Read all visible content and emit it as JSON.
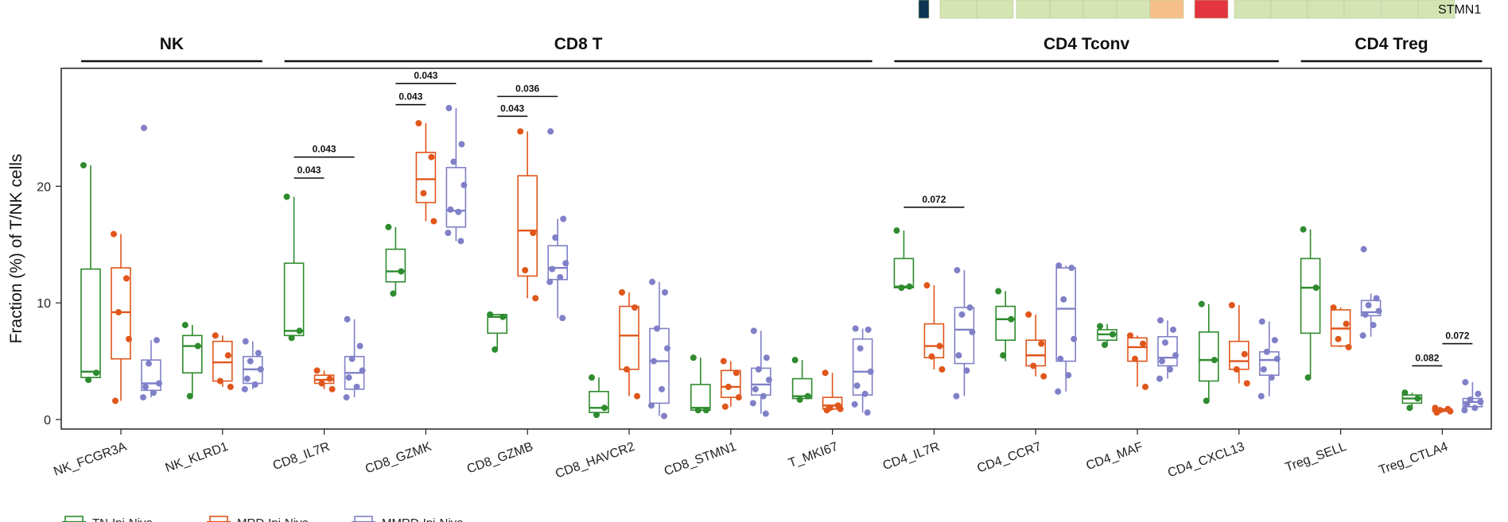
{
  "chart_data": {
    "type": "box",
    "ylabel": "Fraction (%) of T/NK cells",
    "ylim": [
      -1,
      30
    ],
    "yticks": [
      0,
      10,
      20
    ],
    "palette": {
      "TN-Ipi-Nivo": "#2e8b2e",
      "MRD-Ipi-Nivo": "#e0561b",
      "MMRD-Ipi-Nivo": "#8080c8"
    },
    "legend": {
      "position": "bottom-left",
      "entries": [
        {
          "key": "TN-Ipi-Nivo",
          "label": "TN-Ipi-Nivo",
          "color": "#2e8b2e"
        },
        {
          "key": "MRD-Ipi-Nivo",
          "label": "MRD-Ipi-Nivo",
          "color": "#e0561b"
        },
        {
          "key": "MMRD-Ipi-Nivo",
          "label": "MMRD-Ipi-Nivo",
          "color": "#8080c8"
        }
      ]
    },
    "groups": [
      {
        "label": "NK",
        "from": 0,
        "to": 1
      },
      {
        "label": "CD8 T",
        "from": 2,
        "to": 7
      },
      {
        "label": "CD4 Tconv",
        "from": 8,
        "to": 11
      },
      {
        "label": "CD4 Treg",
        "from": 12,
        "to": 13
      }
    ],
    "categories": [
      "NK_FCGR3A",
      "NK_KLRD1",
      "CD8_IL7R",
      "CD8_GZMK",
      "CD8_GZMB",
      "CD8_HAVCR2",
      "CD8_STMN1",
      "T_MKI67",
      "CD4_IL7R",
      "CD4_CCR7",
      "CD4_MAF",
      "CD4_CXCL13",
      "Treg_SELL",
      "Treg_CTLA4"
    ],
    "series": [
      {
        "name": "TN-Ipi-Nivo",
        "boxes": [
          {
            "min": 3.2,
            "q1": 3.6,
            "median": 4.1,
            "q3": 12.9,
            "max": 21.8,
            "points": [
              21.8,
              4.0,
              3.4
            ]
          },
          {
            "min": 2.0,
            "q1": 4.0,
            "median": 6.3,
            "q3": 7.2,
            "max": 8.1,
            "points": [
              8.1,
              6.3,
              2.0
            ]
          },
          {
            "min": 7.0,
            "q1": 7.2,
            "median": 7.6,
            "q3": 13.4,
            "max": 19.1,
            "points": [
              19.1,
              7.6,
              7.0
            ]
          },
          {
            "min": 10.8,
            "q1": 11.8,
            "median": 12.7,
            "q3": 14.6,
            "max": 16.5,
            "points": [
              16.5,
              12.7,
              10.8
            ]
          },
          {
            "min": 6.0,
            "q1": 7.4,
            "median": 8.8,
            "q3": 9.0,
            "max": 9.0,
            "points": [
              9.0,
              8.8,
              6.0
            ]
          },
          {
            "min": 0.4,
            "q1": 0.6,
            "median": 1.0,
            "q3": 2.4,
            "max": 3.6,
            "points": [
              3.6,
              1.0,
              0.4
            ]
          },
          {
            "min": 0.8,
            "q1": 0.8,
            "median": 1.0,
            "q3": 3.0,
            "max": 5.3,
            "points": [
              5.3,
              0.8,
              0.8
            ]
          },
          {
            "min": 1.6,
            "q1": 1.8,
            "median": 2.0,
            "q3": 3.5,
            "max": 5.1,
            "points": [
              5.1,
              2.0,
              1.7
            ]
          },
          {
            "min": 11.2,
            "q1": 11.3,
            "median": 11.4,
            "q3": 13.8,
            "max": 16.2,
            "points": [
              16.2,
              11.4,
              11.3
            ]
          },
          {
            "min": 5.0,
            "q1": 6.8,
            "median": 8.6,
            "q3": 9.7,
            "max": 11.0,
            "points": [
              11.0,
              8.6,
              5.5
            ]
          },
          {
            "min": 6.5,
            "q1": 6.8,
            "median": 7.3,
            "q3": 7.7,
            "max": 8.2,
            "points": [
              8.0,
              7.3,
              6.4
            ]
          },
          {
            "min": 1.6,
            "q1": 3.3,
            "median": 5.1,
            "q3": 7.5,
            "max": 9.9,
            "points": [
              9.9,
              5.1,
              1.6
            ]
          },
          {
            "min": 3.6,
            "q1": 7.4,
            "median": 11.3,
            "q3": 13.8,
            "max": 16.3,
            "points": [
              16.3,
              11.3,
              3.6
            ]
          },
          {
            "min": 0.9,
            "q1": 1.4,
            "median": 1.8,
            "q3": 2.1,
            "max": 2.3,
            "points": [
              2.3,
              1.8,
              1.0
            ]
          }
        ]
      },
      {
        "name": "MRD-Ipi-Nivo",
        "boxes": [
          {
            "min": 1.6,
            "q1": 5.2,
            "median": 9.2,
            "q3": 13.0,
            "max": 15.9,
            "points": [
              15.9,
              12.1,
              9.2,
              6.9,
              1.6
            ]
          },
          {
            "min": 2.8,
            "q1": 3.3,
            "median": 4.9,
            "q3": 6.7,
            "max": 7.2,
            "points": [
              7.2,
              5.5,
              3.3,
              2.8
            ]
          },
          {
            "min": 2.6,
            "q1": 3.1,
            "median": 3.4,
            "q3": 3.8,
            "max": 4.2,
            "points": [
              4.2,
              3.5,
              3.1,
              2.6
            ]
          },
          {
            "min": 17.0,
            "q1": 18.6,
            "median": 20.6,
            "q3": 22.9,
            "max": 25.4,
            "points": [
              25.4,
              22.5,
              19.4,
              17.0
            ]
          },
          {
            "min": 10.4,
            "q1": 12.3,
            "median": 16.2,
            "q3": 20.9,
            "max": 24.7,
            "points": [
              24.7,
              16.0,
              12.8,
              10.4
            ]
          },
          {
            "min": 2.0,
            "q1": 4.3,
            "median": 7.2,
            "q3": 9.7,
            "max": 10.9,
            "points": [
              10.9,
              9.6,
              4.3,
              2.0
            ]
          },
          {
            "min": 1.1,
            "q1": 1.9,
            "median": 2.8,
            "q3": 4.2,
            "max": 5.0,
            "points": [
              5.0,
              4.0,
              2.8,
              1.9,
              1.1
            ]
          },
          {
            "min": 0.8,
            "q1": 0.9,
            "median": 1.2,
            "q3": 1.9,
            "max": 4.0,
            "points": [
              4.0,
              1.2,
              1.0,
              0.9,
              0.8
            ]
          },
          {
            "min": 4.3,
            "q1": 5.3,
            "median": 6.3,
            "q3": 8.2,
            "max": 11.5,
            "points": [
              11.5,
              6.3,
              5.4,
              4.3
            ]
          },
          {
            "min": 3.7,
            "q1": 4.6,
            "median": 5.5,
            "q3": 6.8,
            "max": 9.0,
            "points": [
              9.0,
              6.5,
              4.6,
              3.7
            ]
          },
          {
            "min": 2.8,
            "q1": 5.0,
            "median": 6.2,
            "q3": 7.0,
            "max": 7.2,
            "points": [
              7.2,
              6.5,
              5.2,
              2.8
            ]
          },
          {
            "min": 3.1,
            "q1": 4.3,
            "median": 5.0,
            "q3": 6.7,
            "max": 9.8,
            "points": [
              9.8,
              5.6,
              4.3,
              3.1
            ]
          },
          {
            "min": 6.2,
            "q1": 6.3,
            "median": 7.8,
            "q3": 9.4,
            "max": 9.6,
            "points": [
              9.6,
              8.2,
              6.9,
              6.2
            ]
          },
          {
            "min": 0.6,
            "q1": 0.7,
            "median": 0.8,
            "q3": 0.9,
            "max": 1.0,
            "points": [
              1.0,
              0.9,
              0.8,
              0.7,
              0.6
            ]
          }
        ]
      },
      {
        "name": "MMRD-Ipi-Nivo",
        "boxes": [
          {
            "min": 1.9,
            "q1": 2.5,
            "median": 3.1,
            "q3": 5.1,
            "max": 6.8,
            "points": [
              25.0,
              6.8,
              4.8,
              3.1,
              2.8,
              2.3,
              1.9
            ]
          },
          {
            "min": 2.6,
            "q1": 3.1,
            "median": 4.3,
            "q3": 5.4,
            "max": 6.7,
            "points": [
              6.7,
              5.7,
              5.0,
              4.3,
              3.5,
              3.0,
              2.6
            ]
          },
          {
            "min": 1.9,
            "q1": 2.6,
            "median": 4.0,
            "q3": 5.4,
            "max": 8.6,
            "points": [
              8.6,
              6.3,
              5.2,
              4.2,
              3.6,
              2.8,
              1.9
            ]
          },
          {
            "min": 15.3,
            "q1": 16.5,
            "median": 17.9,
            "q3": 21.6,
            "max": 26.7,
            "points": [
              26.7,
              23.6,
              22.1,
              20.1,
              18.0,
              17.8,
              16.0,
              15.3
            ]
          },
          {
            "min": 8.7,
            "q1": 12.0,
            "median": 13.0,
            "q3": 14.9,
            "max": 17.2,
            "points": [
              24.7,
              17.2,
              15.6,
              13.4,
              12.9,
              12.2,
              11.8,
              8.7
            ]
          },
          {
            "min": 0.3,
            "q1": 1.4,
            "median": 5.0,
            "q3": 7.8,
            "max": 11.8,
            "points": [
              11.8,
              10.9,
              7.8,
              6.1,
              5.0,
              2.6,
              1.2,
              0.3
            ]
          },
          {
            "min": 0.5,
            "q1": 2.1,
            "median": 3.0,
            "q3": 4.4,
            "max": 7.6,
            "points": [
              7.6,
              5.3,
              4.3,
              3.4,
              2.6,
              2.0,
              1.4,
              0.5
            ]
          },
          {
            "min": 0.6,
            "q1": 2.1,
            "median": 4.1,
            "q3": 6.9,
            "max": 7.8,
            "points": [
              7.8,
              7.7,
              6.1,
              4.1,
              2.9,
              2.2,
              1.3,
              0.6
            ]
          },
          {
            "min": 2.0,
            "q1": 4.8,
            "median": 7.7,
            "q3": 9.6,
            "max": 12.8,
            "points": [
              12.8,
              9.6,
              9.0,
              7.5,
              5.5,
              4.2,
              2.0
            ]
          },
          {
            "min": 2.4,
            "q1": 5.0,
            "median": 9.5,
            "q3": 13.0,
            "max": 13.2,
            "points": [
              13.2,
              13.0,
              10.3,
              6.9,
              5.2,
              3.8,
              2.4
            ]
          },
          {
            "min": 3.5,
            "q1": 4.6,
            "median": 5.3,
            "q3": 7.1,
            "max": 8.5,
            "points": [
              8.5,
              7.7,
              6.6,
              5.5,
              5.0,
              4.3,
              3.5
            ]
          },
          {
            "min": 2.0,
            "q1": 3.8,
            "median": 5.1,
            "q3": 5.8,
            "max": 8.4,
            "points": [
              8.4,
              6.8,
              5.8,
              5.2,
              4.3,
              3.6,
              2.0
            ]
          },
          {
            "min": 7.1,
            "q1": 8.9,
            "median": 9.2,
            "q3": 10.2,
            "max": 10.8,
            "points": [
              14.6,
              10.4,
              9.8,
              9.3,
              9.0,
              8.1,
              7.2
            ]
          },
          {
            "min": 0.8,
            "q1": 1.1,
            "median": 1.5,
            "q3": 1.8,
            "max": 3.2,
            "points": [
              3.2,
              2.2,
              1.7,
              1.5,
              1.3,
              1.0,
              0.8
            ]
          }
        ]
      }
    ],
    "comparisons": [
      {
        "category": "CD8_IL7R",
        "from": "TN-Ipi-Nivo",
        "to": "MRD-Ipi-Nivo",
        "y": 20.7,
        "label": "0.043"
      },
      {
        "category": "CD8_IL7R",
        "from": "TN-Ipi-Nivo",
        "to": "MMRD-Ipi-Nivo",
        "y": 22.5,
        "label": "0.043"
      },
      {
        "category": "CD8_GZMK",
        "from": "TN-Ipi-Nivo",
        "to": "MRD-Ipi-Nivo",
        "y": 27.0,
        "label": "0.043"
      },
      {
        "category": "CD8_GZMK",
        "from": "TN-Ipi-Nivo",
        "to": "MMRD-Ipi-Nivo",
        "y": 28.8,
        "label": "0.043"
      },
      {
        "category": "CD8_GZMB",
        "from": "TN-Ipi-Nivo",
        "to": "MRD-Ipi-Nivo",
        "y": 26.0,
        "label": "0.043"
      },
      {
        "category": "CD8_GZMB",
        "from": "TN-Ipi-Nivo",
        "to": "MMRD-Ipi-Nivo",
        "y": 27.7,
        "label": "0.036"
      },
      {
        "category": "CD4_IL7R",
        "from": "TN-Ipi-Nivo",
        "to": "MMRD-Ipi-Nivo",
        "y": 18.2,
        "label": "0.072"
      },
      {
        "category": "Treg_CTLA4",
        "from": "TN-Ipi-Nivo",
        "to": "MRD-Ipi-Nivo",
        "y": 4.6,
        "label": "0.082"
      },
      {
        "category": "Treg_CTLA4",
        "from": "MRD-Ipi-Nivo",
        "to": "MMRD-Ipi-Nivo",
        "y": 6.5,
        "label": "0.072"
      }
    ],
    "heatmap_strip": {
      "row_label": "STMN1",
      "blocks": [
        {
          "cells": [
            "#0d3552"
          ]
        },
        {
          "cells": [
            "#d4e5b3",
            "#d4e5b3"
          ]
        },
        {
          "cells": [
            "#d4e5b3",
            "#d4e5b3",
            "#d4e5b3",
            "#d4e5b3",
            "#f7c08a"
          ]
        },
        {
          "cells": [
            "#e2353f"
          ]
        },
        {
          "cells": [
            "#d4e5b3",
            "#d4e5b3",
            "#d4e5b3",
            "#d4e5b3"
          ]
        },
        {
          "cells": [
            "#d4e5b3",
            "#d4e5b3"
          ]
        }
      ]
    }
  }
}
